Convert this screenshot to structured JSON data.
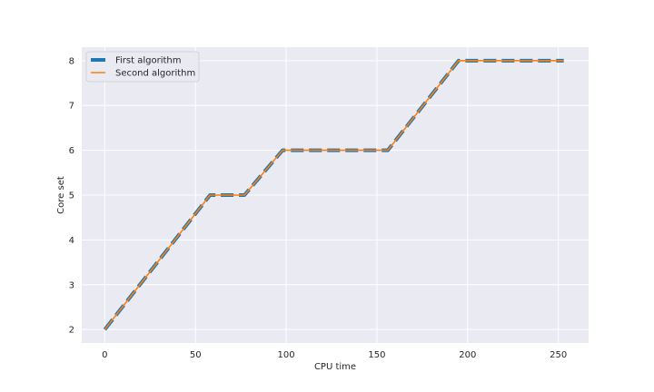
{
  "chart_data": {
    "type": "line",
    "title": "",
    "xlabel": "CPU time",
    "ylabel": "Core set",
    "xlim": [
      -12.7,
      266.7
    ],
    "ylim": [
      1.7,
      8.3
    ],
    "xticks": [
      0,
      50,
      100,
      150,
      200,
      250
    ],
    "yticks": [
      2,
      3,
      4,
      5,
      6,
      7,
      8
    ],
    "grid": true,
    "legend_position": "top-left",
    "background": "#EAEAF2",
    "series": [
      {
        "name": "First algorithm",
        "color": "#1F77B4",
        "style": "dashed",
        "x": [
          0,
          58,
          77,
          98,
          156,
          195,
          253
        ],
        "y": [
          2,
          5,
          5,
          6,
          6,
          8,
          8
        ]
      },
      {
        "name": "Second algorithm",
        "color": "#FF7F0E",
        "style": "solid",
        "x": [
          0,
          58,
          77,
          98,
          156,
          195,
          253
        ],
        "y": [
          2,
          5,
          5,
          6,
          6,
          8,
          8
        ]
      }
    ]
  }
}
